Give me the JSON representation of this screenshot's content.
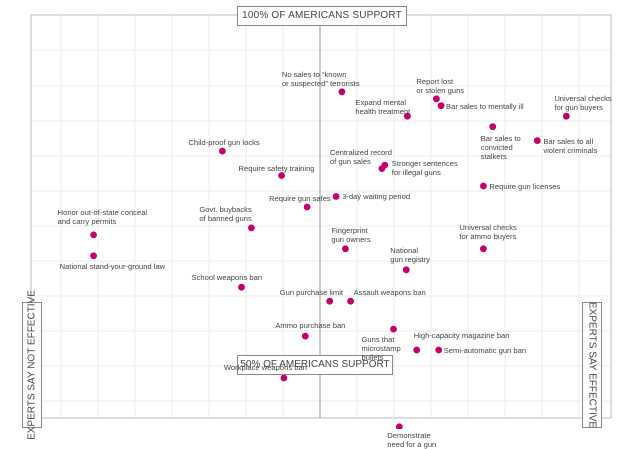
{
  "chart_data": {
    "type": "scatter",
    "axes": {
      "top_label": "100% OF AMERICANS SUPPORT",
      "middle_label": "50% OF AMERICANS SUPPORT",
      "left_label": "EXPERTS SAY NOT EFFECTIVE",
      "right_label": "EXPERTS SAY EFFECTIVE"
    },
    "x_measure": "effectiveness",
    "x_range": [
      0,
      100
    ],
    "y_measure": "public support (%)",
    "y_range": [
      40,
      100
    ],
    "grid": true,
    "point_color": "#c4006e",
    "points": [
      {
        "label": "No sales to “known\nor suspected” terrorists",
        "x": 53.6,
        "y": 89.0
      },
      {
        "label": "Report lost\nor stolen guns",
        "x": 69.9,
        "y": 88.0
      },
      {
        "label": "Universal checks\nfor gun buyers",
        "x": 92.3,
        "y": 85.5
      },
      {
        "label": "Expand mental\nhealth treatment",
        "x": 64.9,
        "y": 85.5
      },
      {
        "label": "Bar sales to mentally ill",
        "x": 70.7,
        "y": 87.0
      },
      {
        "label": "Bar sales to\nconvicted\nstalkers",
        "x": 79.6,
        "y": 84.0
      },
      {
        "label": "Bar sales to all\nviolent criminals",
        "x": 87.3,
        "y": 82.0
      },
      {
        "label": "Child-proof gun locks",
        "x": 33.0,
        "y": 80.5
      },
      {
        "label": "Centralized record\nof gun sales",
        "x": 60.5,
        "y": 78.0
      },
      {
        "label": "Stronger sentences\nfor illegal guns",
        "x": 61.0,
        "y": 78.5
      },
      {
        "label": "Require safety training",
        "x": 43.2,
        "y": 77.0
      },
      {
        "label": "Require gun licenses",
        "x": 78.0,
        "y": 75.5
      },
      {
        "label": "Require gun safes",
        "x": 47.6,
        "y": 72.5
      },
      {
        "label": "3-day waiting period",
        "x": 52.6,
        "y": 74.0
      },
      {
        "label": "Govt. buybacks\nof banned guns",
        "x": 38.0,
        "y": 69.5
      },
      {
        "label": "Honor out-of-state conceal\nand carry permits",
        "x": 10.8,
        "y": 68.5
      },
      {
        "label": "National stand-your-ground law",
        "x": 10.8,
        "y": 65.5
      },
      {
        "label": "Fingerprint\ngun owners",
        "x": 54.2,
        "y": 66.5
      },
      {
        "label": "Universal checks\nfor ammo buyers",
        "x": 78.0,
        "y": 66.5
      },
      {
        "label": "National\ngun registry",
        "x": 64.7,
        "y": 63.5
      },
      {
        "label": "School weapons ban",
        "x": 36.3,
        "y": 61.0
      },
      {
        "label": "Gun purchase limit",
        "x": 51.5,
        "y": 59.0
      },
      {
        "label": "Assault weapons ban",
        "x": 55.1,
        "y": 59.0
      },
      {
        "label": "Guns that\nmicrostamp\nbullets",
        "x": 62.5,
        "y": 55.0
      },
      {
        "label": "High-capacity magazine ban",
        "x": 66.5,
        "y": 52.0
      },
      {
        "label": "Semi-automatic gun ban",
        "x": 70.3,
        "y": 52.0
      },
      {
        "label": "Ammo purchase ban",
        "x": 47.3,
        "y": 54.0
      },
      {
        "label": "Workplace weapons ban",
        "x": 43.6,
        "y": 48.0
      },
      {
        "label": "Demonstrate\nneed for a gun",
        "x": 63.5,
        "y": 41.0
      }
    ]
  }
}
